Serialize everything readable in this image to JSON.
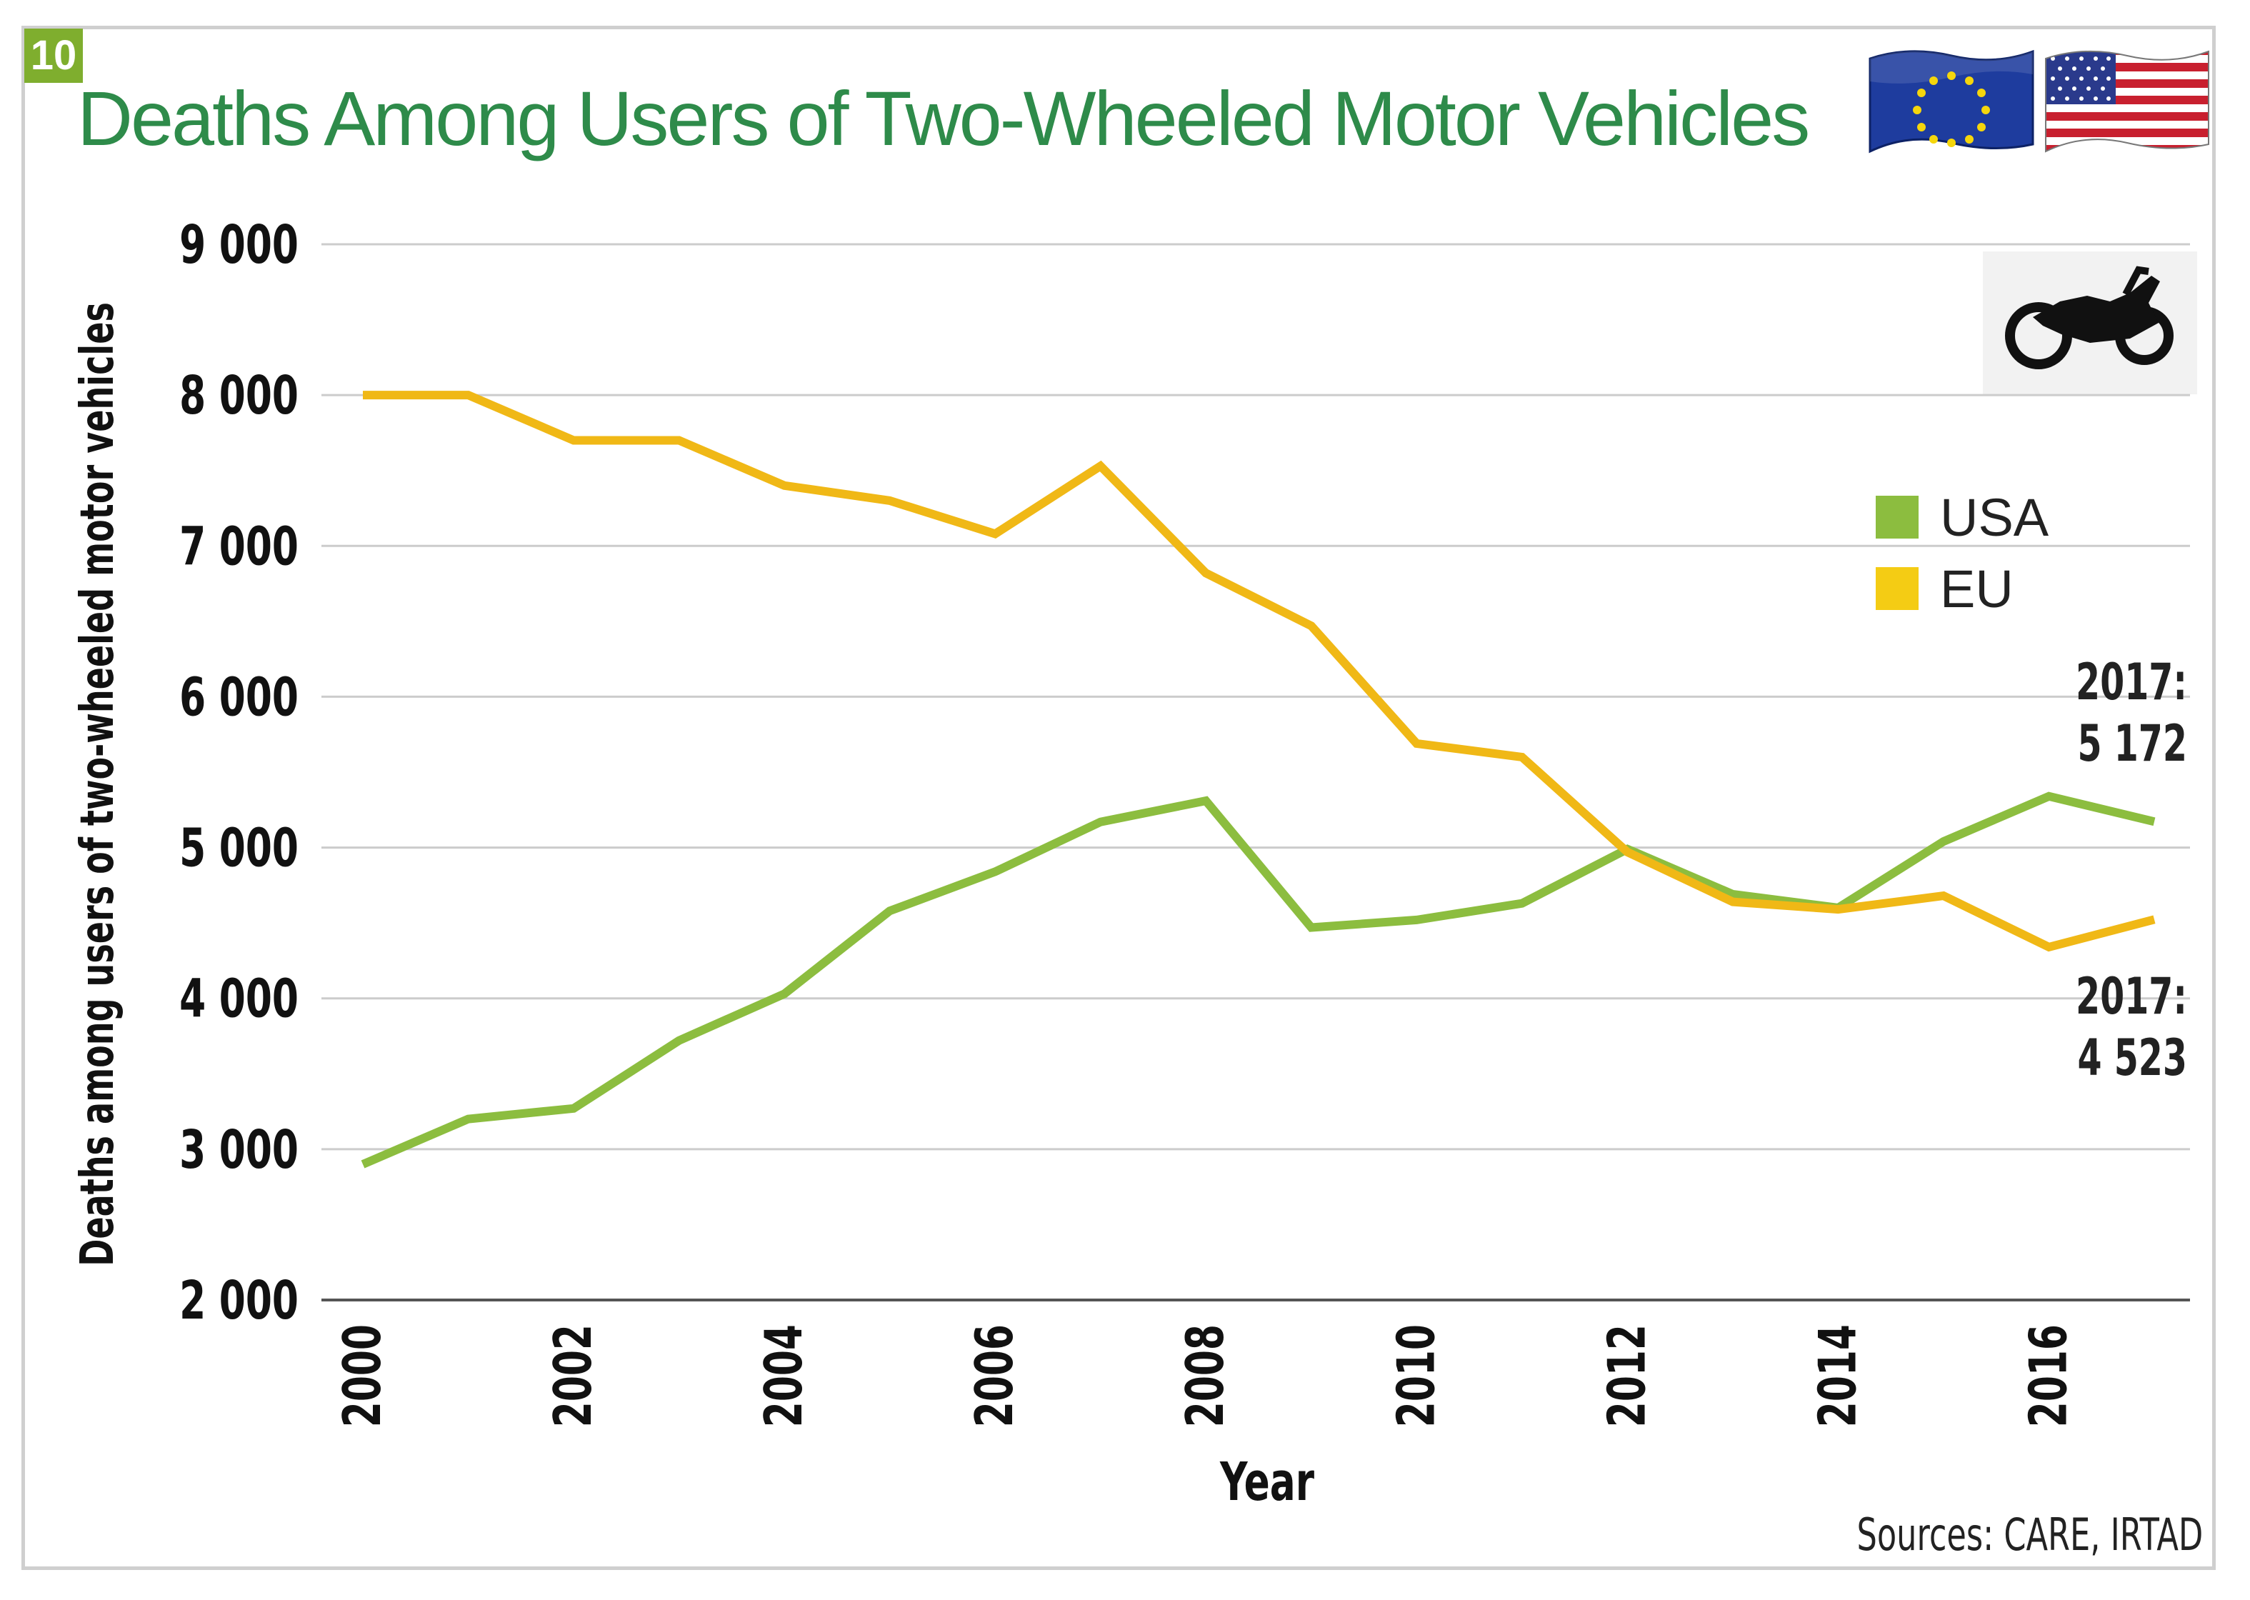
{
  "badge": "10",
  "title": "Deaths Among Users of Two-Wheeled Motor Vehicles",
  "icons": {
    "flag_eu": "eu-flag-icon",
    "flag_usa": "usa-flag-icon",
    "motorcycle": "motorcycle-icon"
  },
  "colors": {
    "title": "#2e8b4a",
    "badge": "#7fae2e",
    "usa": "#8cbd3f",
    "eu": "#f0b816",
    "eu_legend": "#f4cc14",
    "grid": "#cccccc"
  },
  "legend": {
    "usa_label": "USA",
    "eu_label": "EU"
  },
  "annotations": {
    "usa_year": "2017:",
    "usa_value": "5 172",
    "eu_year": "2017:",
    "eu_value": "4 523"
  },
  "sources": "Sources: CARE, IRTAD",
  "chart_data": {
    "type": "line",
    "title": "Deaths Among Users of Two-Wheeled Motor Vehicles",
    "xlabel": "Year",
    "ylabel": "Deaths among users of two-wheeled motor vehicles",
    "x": [
      2000,
      2001,
      2002,
      2003,
      2004,
      2005,
      2006,
      2007,
      2008,
      2009,
      2010,
      2011,
      2012,
      2013,
      2014,
      2015,
      2016,
      2017
    ],
    "xticks": [
      2000,
      2002,
      2004,
      2006,
      2008,
      2010,
      2012,
      2014,
      2016
    ],
    "xtick_labels": [
      "2000",
      "2002",
      "2004",
      "2006",
      "2008",
      "2010",
      "2012",
      "2014",
      "2016"
    ],
    "yticks": [
      2000,
      3000,
      4000,
      5000,
      6000,
      7000,
      8000,
      9000
    ],
    "ytick_labels": [
      "2 000",
      "3 000",
      "4 000",
      "5 000",
      "6 000",
      "7 000",
      "8 000",
      "9 000"
    ],
    "xlim": [
      2000,
      2017
    ],
    "ylim": [
      2000,
      9000
    ],
    "grid": true,
    "legend_position": "right",
    "series": [
      {
        "name": "USA",
        "key": "usa",
        "values": [
          2900,
          3200,
          3270,
          3720,
          4030,
          4580,
          4840,
          5170,
          5310,
          4470,
          4520,
          4630,
          4990,
          4690,
          4600,
          5040,
          5340,
          5172
        ]
      },
      {
        "name": "EU",
        "key": "eu",
        "values": [
          8000,
          8000,
          7700,
          7700,
          7400,
          7300,
          7080,
          7530,
          6820,
          6470,
          5690,
          5600,
          4970,
          4640,
          4590,
          4680,
          4340,
          4523
        ]
      }
    ]
  }
}
